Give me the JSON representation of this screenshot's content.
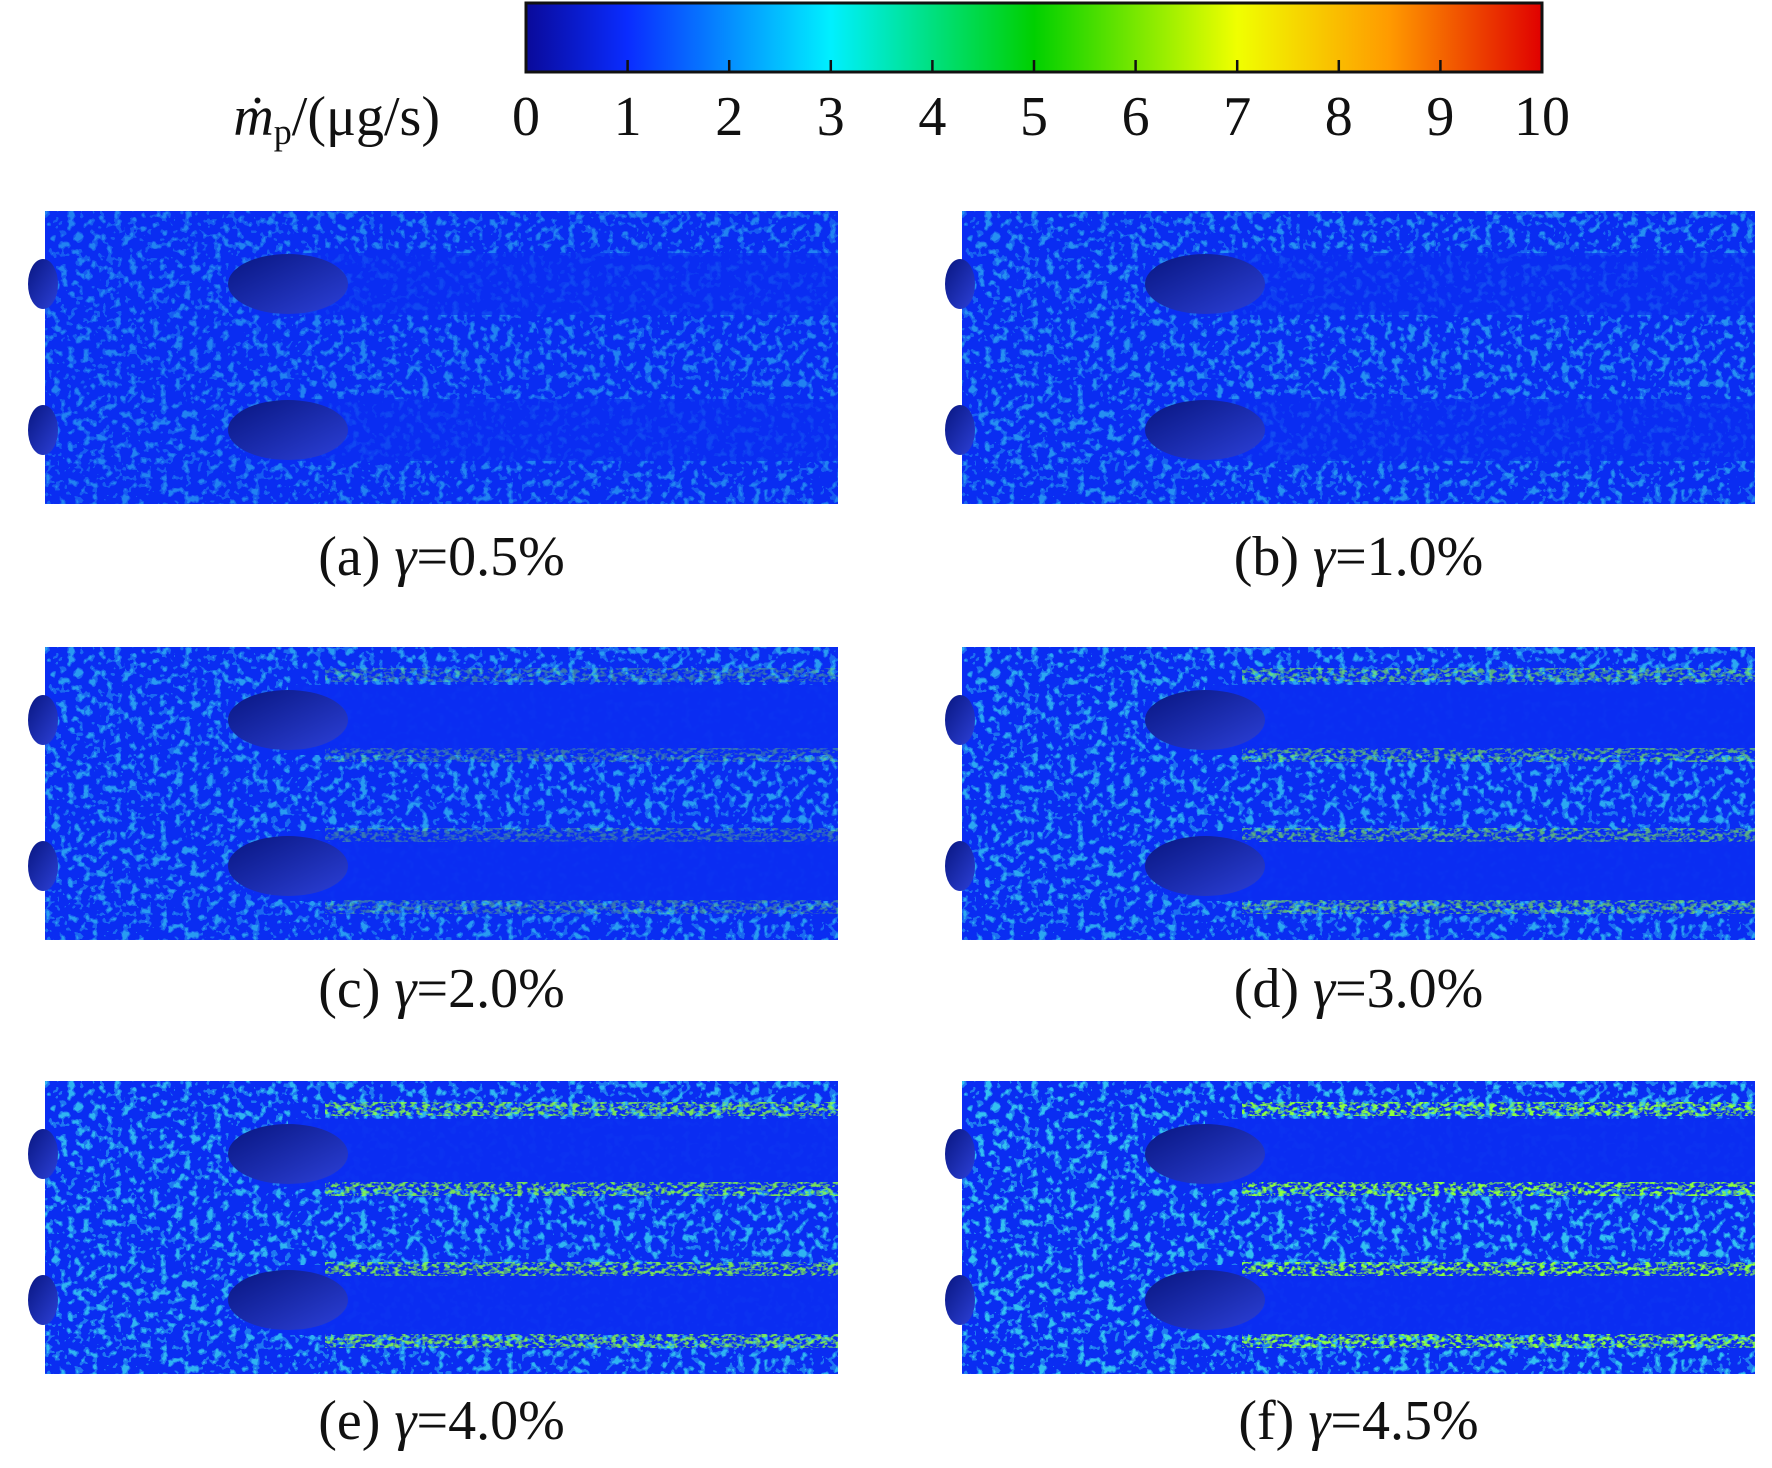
{
  "colorbar": {
    "symbol": "ṁ",
    "subscript": "p",
    "unit": "/(μg/s)",
    "lim": [
      0,
      10
    ],
    "ticks": [
      0,
      1,
      2,
      3,
      4,
      5,
      6,
      7,
      8,
      9,
      10
    ]
  },
  "panels": [
    {
      "label": "(a)",
      "symbol": "γ",
      "text": "=0.5%"
    },
    {
      "label": "(b)",
      "symbol": "γ",
      "text": "=1.0%"
    },
    {
      "label": "(c)",
      "symbol": "γ",
      "text": "=2.0%"
    },
    {
      "label": "(d)",
      "symbol": "γ",
      "text": "=3.0%"
    },
    {
      "label": "(e)",
      "symbol": "γ",
      "text": "=4.0%"
    },
    {
      "label": "(f)",
      "symbol": "γ",
      "text": "=4.5%"
    }
  ]
}
